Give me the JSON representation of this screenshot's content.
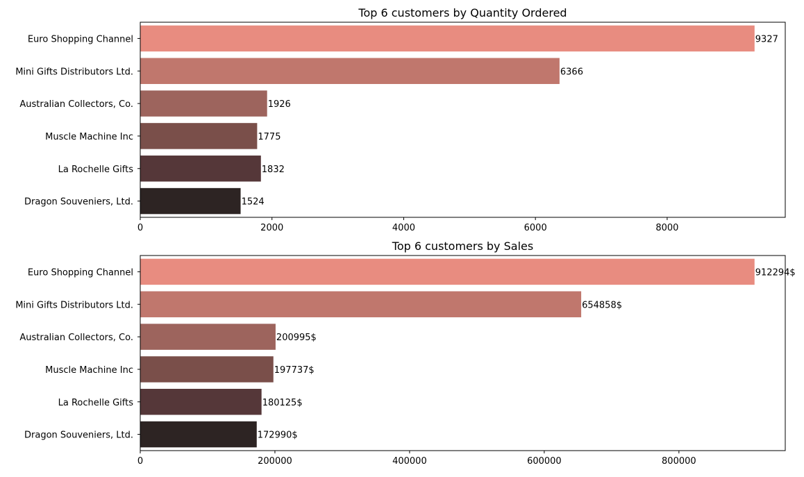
{
  "chart_data": [
    {
      "type": "bar",
      "orientation": "horizontal",
      "title": "Top 6 customers by Quantity Ordered",
      "xlabel": "",
      "ylabel": "",
      "categories": [
        "Euro Shopping Channel",
        "Mini Gifts Distributors Ltd.",
        "Australian Collectors, Co.",
        "Muscle Machine Inc",
        "La Rochelle Gifts",
        "Dragon Souveniers, Ltd."
      ],
      "values": [
        9327,
        6366,
        1926,
        1775,
        1832,
        1524
      ],
      "value_labels": [
        "9327",
        "6366",
        "1926",
        "1775",
        "1832",
        "1524"
      ],
      "xlim": [
        0,
        9793
      ],
      "xticks": [
        0,
        2000,
        4000,
        6000,
        8000
      ],
      "xtick_labels": [
        "0",
        "2000",
        "4000",
        "6000",
        "8000"
      ],
      "grid": false,
      "bar_colors": [
        "#e88c80",
        "#c0776d",
        "#9d645d",
        "#7a4f4a",
        "#553739",
        "#2d2423"
      ]
    },
    {
      "type": "bar",
      "orientation": "horizontal",
      "title": "Top 6 customers by Sales",
      "xlabel": "",
      "ylabel": "",
      "categories": [
        "Euro Shopping Channel",
        "Mini Gifts Distributors Ltd.",
        "Australian Collectors, Co.",
        "Muscle Machine Inc",
        "La Rochelle Gifts",
        "Dragon Souveniers, Ltd."
      ],
      "values": [
        912294,
        654858,
        200995,
        197737,
        180125,
        172990
      ],
      "value_labels": [
        "912294$",
        "654858$",
        "200995$",
        "197737$",
        "180125$",
        "172990$"
      ],
      "xlim": [
        0,
        957909
      ],
      "xticks": [
        0,
        200000,
        400000,
        600000,
        800000
      ],
      "xtick_labels": [
        "0",
        "200000",
        "400000",
        "600000",
        "800000"
      ],
      "grid": false,
      "bar_colors": [
        "#e88c80",
        "#c0776d",
        "#9d645d",
        "#7a4f4a",
        "#553739",
        "#2d2423"
      ]
    }
  ]
}
